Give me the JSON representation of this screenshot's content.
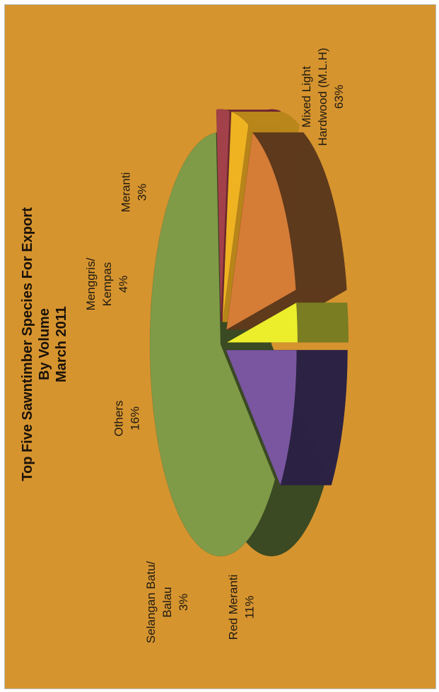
{
  "chart_data": {
    "type": "pie",
    "style": "3d exploded, rotated 90 degrees",
    "title": [
      "Top Five Sawntimber Species For Export",
      "By Volume",
      "March 2011"
    ],
    "unit": "%",
    "slices": [
      {
        "label": [
          "Mixed Light",
          "Hardwood (M.L.H)"
        ],
        "value": 63,
        "value_text": "63%",
        "color": "#7f9b47",
        "side": "#3b4a22"
      },
      {
        "label": [
          "Meranti"
        ],
        "value": 3,
        "value_text": "3%",
        "color": "#a3414a",
        "side": "#6e2730"
      },
      {
        "label": [
          "Menggris/",
          "Kempas"
        ],
        "value": 4,
        "value_text": "4%",
        "color": "#efb322",
        "side": "#b8861a"
      },
      {
        "label": [
          "Others"
        ],
        "value": 16,
        "value_text": "16%",
        "color": "#d57c37",
        "side": "#5e3a1c"
      },
      {
        "label": [
          "Selangan Batu/",
          "Balau"
        ],
        "value": 3,
        "value_text": "3%",
        "color": "#ecee2c",
        "side": "#7a7d22"
      },
      {
        "label": [
          "Red Meranti"
        ],
        "value": 11,
        "value_text": "11%",
        "color": "#7a56a0",
        "side": "#2b2244"
      }
    ]
  }
}
